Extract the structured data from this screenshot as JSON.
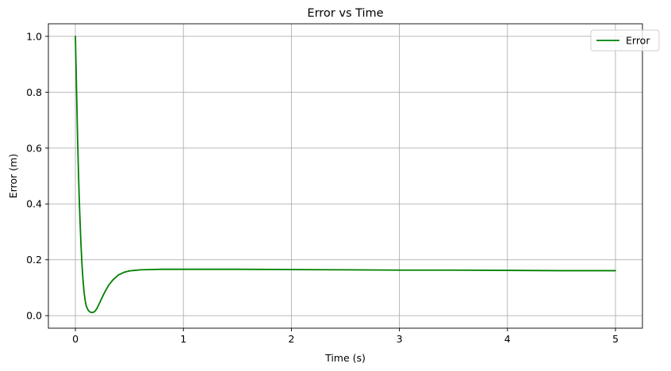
{
  "chart_data": {
    "type": "line",
    "title": "Error vs Time",
    "xlabel": "Time (s)",
    "ylabel": "Error (m)",
    "xlim": [
      -0.25,
      5.25
    ],
    "ylim": [
      -0.045,
      1.045
    ],
    "xticks": [
      0,
      1,
      2,
      3,
      4,
      5
    ],
    "xtick_labels": [
      "0",
      "1",
      "2",
      "3",
      "4",
      "5"
    ],
    "yticks": [
      0.0,
      0.2,
      0.4,
      0.6,
      0.8,
      1.0
    ],
    "ytick_labels": [
      "0.0",
      "0.2",
      "0.4",
      "0.6",
      "0.8",
      "1.0"
    ],
    "grid": true,
    "legend_position": "top-right",
    "series": [
      {
        "name": "Error",
        "color": "#008000",
        "x": [
          0,
          0.01,
          0.02,
          0.03,
          0.04,
          0.05,
          0.06,
          0.07,
          0.08,
          0.09,
          0.1,
          0.12,
          0.14,
          0.16,
          0.18,
          0.2,
          0.22,
          0.25,
          0.28,
          0.31,
          0.35,
          0.4,
          0.45,
          0.5,
          0.55,
          0.6,
          0.7,
          0.8,
          0.9,
          1.0,
          1.5,
          2.0,
          2.5,
          3.0,
          3.5,
          4.0,
          4.5,
          5.0
        ],
        "y": [
          1.0,
          0.82,
          0.64,
          0.49,
          0.37,
          0.27,
          0.19,
          0.13,
          0.085,
          0.055,
          0.035,
          0.018,
          0.012,
          0.011,
          0.015,
          0.026,
          0.042,
          0.067,
          0.09,
          0.11,
          0.129,
          0.146,
          0.155,
          0.16,
          0.162,
          0.164,
          0.165,
          0.166,
          0.166,
          0.166,
          0.166,
          0.165,
          0.164,
          0.163,
          0.163,
          0.162,
          0.161,
          0.161
        ]
      }
    ]
  }
}
